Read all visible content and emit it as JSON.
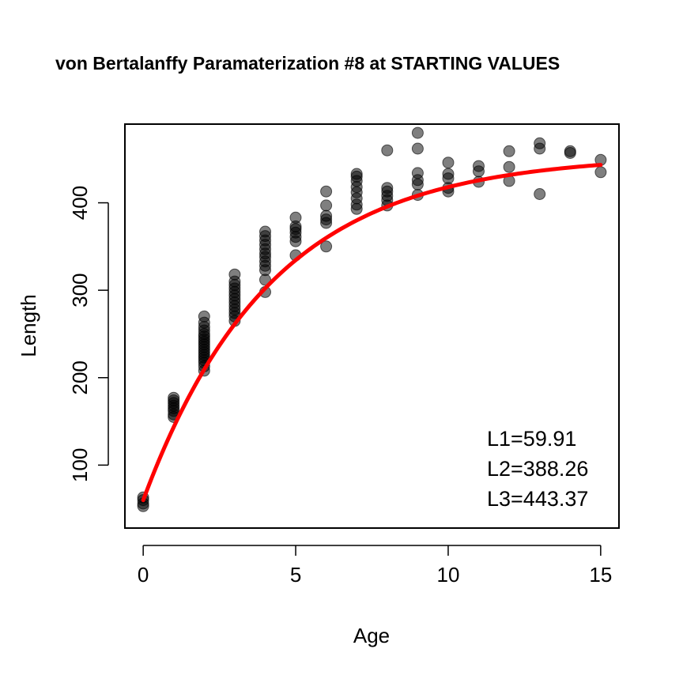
{
  "chart_data": {
    "type": "scatter",
    "title": "von Bertalanffy Paramaterization #8 at STARTING VALUES",
    "xlabel": "Age",
    "ylabel": "Length",
    "xlim": [
      -0.6,
      15.6
    ],
    "ylim": [
      28,
      490
    ],
    "x_ticks": [
      0,
      5,
      10,
      15
    ],
    "y_ticks": [
      100,
      200,
      300,
      400
    ],
    "grid": false,
    "point_color": "#000000",
    "point_opacity": 0.5,
    "curve_color": "#ff0000",
    "annotations": [
      "L1=59.91",
      "L2=388.26",
      "L3=443.37"
    ],
    "curve": {
      "model": "von Bertalanffy (L1, L2, L3 parameterization)",
      "L1": 59.91,
      "L2": 388.26,
      "L3": 443.37,
      "t1": 0,
      "t3": 15
    },
    "points": [
      {
        "x": 0,
        "y": 53
      },
      {
        "x": 0,
        "y": 56
      },
      {
        "x": 0,
        "y": 60
      },
      {
        "x": 0,
        "y": 63
      },
      {
        "x": 1,
        "y": 155
      },
      {
        "x": 1,
        "y": 158
      },
      {
        "x": 1,
        "y": 162
      },
      {
        "x": 1,
        "y": 165
      },
      {
        "x": 1,
        "y": 168
      },
      {
        "x": 1,
        "y": 171
      },
      {
        "x": 1,
        "y": 174
      },
      {
        "x": 1,
        "y": 177
      },
      {
        "x": 2,
        "y": 208
      },
      {
        "x": 2,
        "y": 213
      },
      {
        "x": 2,
        "y": 217
      },
      {
        "x": 2,
        "y": 220
      },
      {
        "x": 2,
        "y": 223
      },
      {
        "x": 2,
        "y": 226
      },
      {
        "x": 2,
        "y": 229
      },
      {
        "x": 2,
        "y": 232
      },
      {
        "x": 2,
        "y": 235
      },
      {
        "x": 2,
        "y": 238
      },
      {
        "x": 2,
        "y": 241
      },
      {
        "x": 2,
        "y": 244
      },
      {
        "x": 2,
        "y": 247
      },
      {
        "x": 2,
        "y": 250
      },
      {
        "x": 2,
        "y": 254
      },
      {
        "x": 2,
        "y": 258
      },
      {
        "x": 2,
        "y": 263
      },
      {
        "x": 2,
        "y": 270
      },
      {
        "x": 3,
        "y": 265
      },
      {
        "x": 3,
        "y": 270
      },
      {
        "x": 3,
        "y": 274
      },
      {
        "x": 3,
        "y": 278
      },
      {
        "x": 3,
        "y": 282
      },
      {
        "x": 3,
        "y": 286
      },
      {
        "x": 3,
        "y": 290
      },
      {
        "x": 3,
        "y": 294
      },
      {
        "x": 3,
        "y": 298
      },
      {
        "x": 3,
        "y": 302
      },
      {
        "x": 3,
        "y": 306
      },
      {
        "x": 3,
        "y": 310
      },
      {
        "x": 3,
        "y": 318
      },
      {
        "x": 4,
        "y": 298
      },
      {
        "x": 4,
        "y": 312
      },
      {
        "x": 4,
        "y": 323
      },
      {
        "x": 4,
        "y": 328
      },
      {
        "x": 4,
        "y": 333
      },
      {
        "x": 4,
        "y": 338
      },
      {
        "x": 4,
        "y": 342
      },
      {
        "x": 4,
        "y": 347
      },
      {
        "x": 4,
        "y": 352
      },
      {
        "x": 4,
        "y": 357
      },
      {
        "x": 4,
        "y": 362
      },
      {
        "x": 4,
        "y": 367
      },
      {
        "x": 5,
        "y": 340
      },
      {
        "x": 5,
        "y": 356
      },
      {
        "x": 5,
        "y": 361
      },
      {
        "x": 5,
        "y": 366
      },
      {
        "x": 5,
        "y": 370
      },
      {
        "x": 5,
        "y": 373
      },
      {
        "x": 5,
        "y": 383
      },
      {
        "x": 6,
        "y": 350
      },
      {
        "x": 6,
        "y": 377
      },
      {
        "x": 6,
        "y": 381
      },
      {
        "x": 6,
        "y": 385
      },
      {
        "x": 6,
        "y": 397
      },
      {
        "x": 6,
        "y": 413
      },
      {
        "x": 7,
        "y": 393
      },
      {
        "x": 7,
        "y": 398
      },
      {
        "x": 7,
        "y": 405
      },
      {
        "x": 7,
        "y": 412
      },
      {
        "x": 7,
        "y": 418
      },
      {
        "x": 7,
        "y": 425
      },
      {
        "x": 7,
        "y": 430
      },
      {
        "x": 7,
        "y": 433
      },
      {
        "x": 8,
        "y": 397
      },
      {
        "x": 8,
        "y": 403
      },
      {
        "x": 8,
        "y": 408
      },
      {
        "x": 8,
        "y": 413
      },
      {
        "x": 8,
        "y": 417
      },
      {
        "x": 8,
        "y": 460
      },
      {
        "x": 9,
        "y": 409
      },
      {
        "x": 9,
        "y": 421
      },
      {
        "x": 9,
        "y": 426
      },
      {
        "x": 9,
        "y": 434
      },
      {
        "x": 9,
        "y": 462
      },
      {
        "x": 9,
        "y": 480
      },
      {
        "x": 10,
        "y": 413
      },
      {
        "x": 10,
        "y": 417
      },
      {
        "x": 10,
        "y": 428
      },
      {
        "x": 10,
        "y": 433
      },
      {
        "x": 10,
        "y": 446
      },
      {
        "x": 11,
        "y": 424
      },
      {
        "x": 11,
        "y": 436
      },
      {
        "x": 11,
        "y": 442
      },
      {
        "x": 12,
        "y": 425
      },
      {
        "x": 12,
        "y": 441
      },
      {
        "x": 12,
        "y": 459
      },
      {
        "x": 13,
        "y": 410
      },
      {
        "x": 13,
        "y": 462
      },
      {
        "x": 13,
        "y": 468
      },
      {
        "x": 14,
        "y": 457
      },
      {
        "x": 14,
        "y": 459
      },
      {
        "x": 15,
        "y": 435
      },
      {
        "x": 15,
        "y": 449
      }
    ]
  }
}
